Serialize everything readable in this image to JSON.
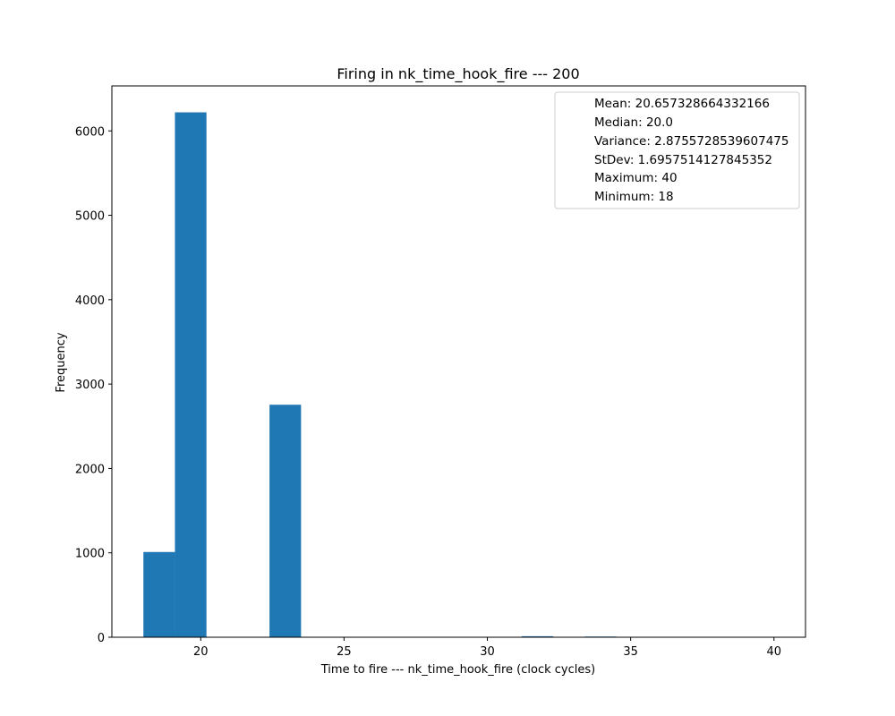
{
  "chart_data": {
    "type": "bar",
    "title": "Firing in nk_time_hook_fire --- 200",
    "xlabel": "Time to fire --- nk_time_hook_fire (clock cycles)",
    "ylabel": "Frequency",
    "xlim": [
      16.9,
      41.1
    ],
    "ylim": [
      0,
      6533
    ],
    "xticks": [
      20,
      25,
      30,
      35,
      40
    ],
    "yticks": [
      0,
      1000,
      2000,
      3000,
      4000,
      5000,
      6000
    ],
    "bins": [
      {
        "x0": 18.0,
        "x1": 19.1,
        "value": 1010
      },
      {
        "x0": 19.1,
        "x1": 20.2,
        "value": 6220
      },
      {
        "x0": 22.4,
        "x1": 23.5,
        "value": 2755
      },
      {
        "x0": 31.2,
        "x1": 32.3,
        "value": 12
      },
      {
        "x0": 33.4,
        "x1": 34.5,
        "value": 8
      }
    ],
    "bar_color": "#1f77b4",
    "grid": false,
    "legend_position": "upper right",
    "legend": [
      "Mean: 20.657328664332166",
      "Median: 20.0",
      "Variance: 2.8755728539607475",
      "StDev: 1.6957514127845352",
      "Maximum: 40",
      "Minimum: 18"
    ]
  }
}
